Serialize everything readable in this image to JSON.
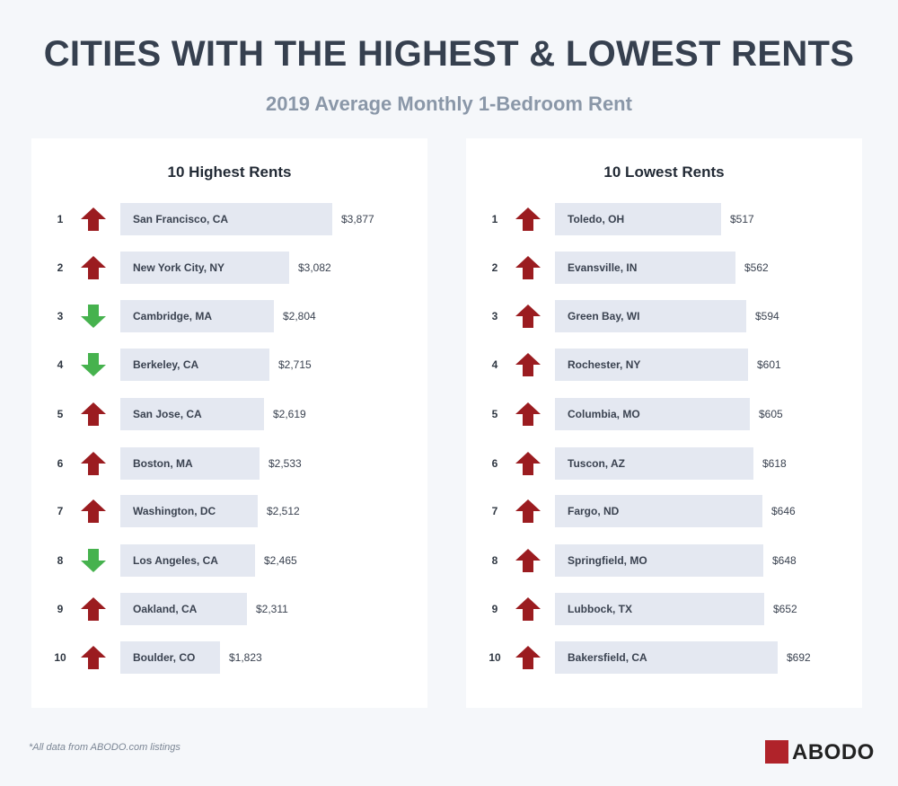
{
  "header": {
    "title": "CITIES WITH THE HIGHEST & LOWEST RENTS",
    "subtitle": "2019 Average Monthly 1-Bedroom Rent"
  },
  "footnote": "*All data from ABODO.com listings",
  "logo": {
    "text": "ABODO"
  },
  "colors": {
    "up": "#9b1c20",
    "down": "#46b24e",
    "bar": "#e4e8f1"
  },
  "chart_data": [
    {
      "type": "bar",
      "orientation": "horizontal",
      "title": "10 Highest Rents",
      "ranks": [
        1,
        2,
        3,
        4,
        5,
        6,
        7,
        8,
        9,
        10
      ],
      "categories": [
        "San Francisco, CA",
        "New York City, NY",
        "Cambridge, MA",
        "Berkeley, CA",
        "San Jose, CA",
        "Boston, MA",
        "Washington, DC",
        "Los Angeles, CA",
        "Oakland, CA",
        "Boulder, CO"
      ],
      "values": [
        3877,
        3082,
        2804,
        2715,
        2619,
        2533,
        2512,
        2465,
        2311,
        1823
      ],
      "labels": [
        "$3,877",
        "$3,082",
        "$2,804",
        "$2,715",
        "$2,619",
        "$2,533",
        "$2,512",
        "$2,465",
        "$2,311",
        "$1,823"
      ],
      "trend": [
        "up",
        "up",
        "down",
        "down",
        "up",
        "up",
        "up",
        "down",
        "up",
        "up"
      ]
    },
    {
      "type": "bar",
      "orientation": "horizontal",
      "title": "10 Lowest Rents",
      "ranks": [
        1,
        2,
        3,
        4,
        5,
        6,
        7,
        8,
        9,
        10
      ],
      "categories": [
        "Toledo, OH",
        "Evansville, IN",
        "Green Bay, WI",
        "Rochester, NY",
        "Columbia, MO",
        "Tuscon, AZ",
        "Fargo, ND",
        "Springfield, MO",
        "Lubbock, TX",
        "Bakersfield, CA"
      ],
      "values": [
        517,
        562,
        594,
        601,
        605,
        618,
        646,
        648,
        652,
        692
      ],
      "labels": [
        "$517",
        "$562",
        "$594",
        "$601",
        "$605",
        "$618",
        "$646",
        "$648",
        "$652",
        "$692"
      ],
      "trend": [
        "up",
        "up",
        "up",
        "up",
        "up",
        "up",
        "up",
        "up",
        "up",
        "up"
      ]
    }
  ]
}
